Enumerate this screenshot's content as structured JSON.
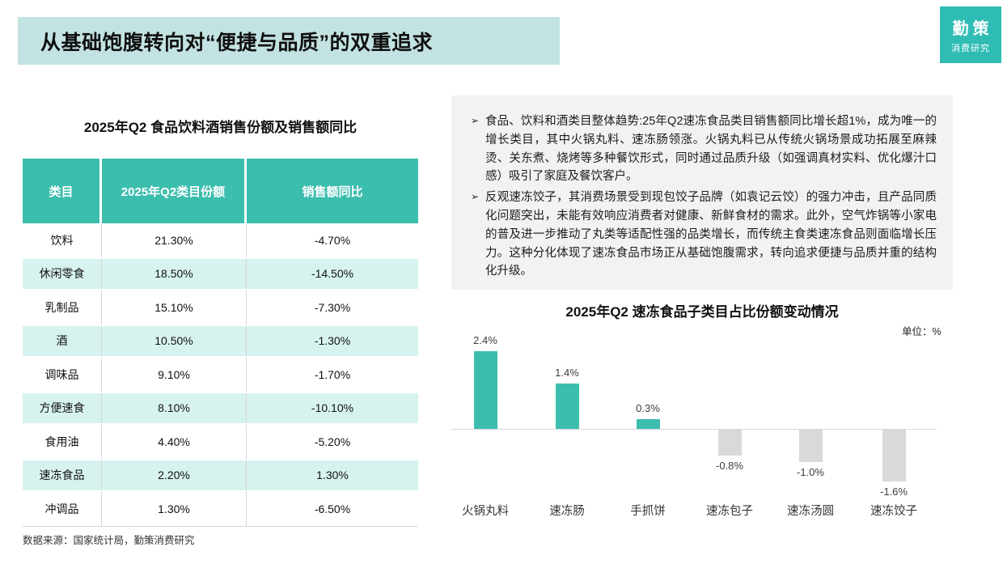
{
  "header": {
    "title": "从基础饱腹转向对“便捷与品质”的双重追求",
    "logo_line1": "勤策",
    "logo_line2": "消费研究"
  },
  "table_section": {
    "title": "2025年Q2 食品饮料酒销售份额及销售额同比",
    "columns": [
      "类目",
      "2025年Q2类目份额",
      "销售额同比"
    ],
    "rows": [
      [
        "饮料",
        "21.30%",
        "-4.70%"
      ],
      [
        "休闲零食",
        "18.50%",
        "-14.50%"
      ],
      [
        "乳制品",
        "15.10%",
        "-7.30%"
      ],
      [
        "酒",
        "10.50%",
        "-1.30%"
      ],
      [
        "调味品",
        "9.10%",
        "-1.70%"
      ],
      [
        "方便速食",
        "8.10%",
        "-10.10%"
      ],
      [
        "食用油",
        "4.40%",
        "-5.20%"
      ],
      [
        "速冻食品",
        "2.20%",
        "1.30%"
      ],
      [
        "冲调品",
        "1.30%",
        "-6.50%"
      ]
    ]
  },
  "insights": {
    "marker": "➢",
    "bullets": [
      "食品、饮料和酒类目整体趋势:25年Q2速冻食品类目销售额同比增长超1%，成为唯一的增长类目，其中火锅丸料、速冻肠领涨。火锅丸料已从传统火锅场景成功拓展至麻辣烫、关东煮、烧烤等多种餐饮形式，同时通过品质升级（如强调真材实料、优化爆汁口感）吸引了家庭及餐饮客户。",
      "反观速冻饺子，其消费场景受到现包饺子品牌（如袁记云饺）的强力冲击，且产品同质化问题突出，未能有效响应消费者对健康、新鲜食材的需求。此外，空气炸锅等小家电的普及进一步推动了丸类等适配性强的品类增长，而传统主食类速冻食品则面临增长压力。这种分化体现了速冻食品市场正从基础饱腹需求，转向追求便捷与品质并重的结构化升级。"
    ]
  },
  "chart_data": {
    "type": "bar",
    "title": "2025年Q2 速冻食品子类目占比份额变动情况",
    "unit_label": "单位：%",
    "categories": [
      "火锅丸料",
      "速冻肠",
      "手抓饼",
      "速冻包子",
      "速冻汤圆",
      "速冻饺子"
    ],
    "values": [
      2.4,
      1.4,
      0.3,
      -0.8,
      -1.0,
      -1.6
    ],
    "labels": [
      "2.4%",
      "1.4%",
      "0.3%",
      "-0.8%",
      "-1.0%",
      "-1.6%"
    ],
    "ylim": [
      -2.0,
      2.6
    ],
    "grid": false,
    "legend": false,
    "positive_color": "#3CBEAE",
    "negative_color": "#D9D9D9"
  },
  "footer": {
    "source": "数据来源：国家统计局，勤策消费研究"
  },
  "colors": {
    "accent_teal": "#3CBEAE",
    "logo_teal": "#2FBCB4",
    "banner_bg": "#C3E2E2",
    "row_tint": "#D7F3EF",
    "insight_bg": "#F2F2F2",
    "neutral_gray": "#D9D9D9"
  }
}
